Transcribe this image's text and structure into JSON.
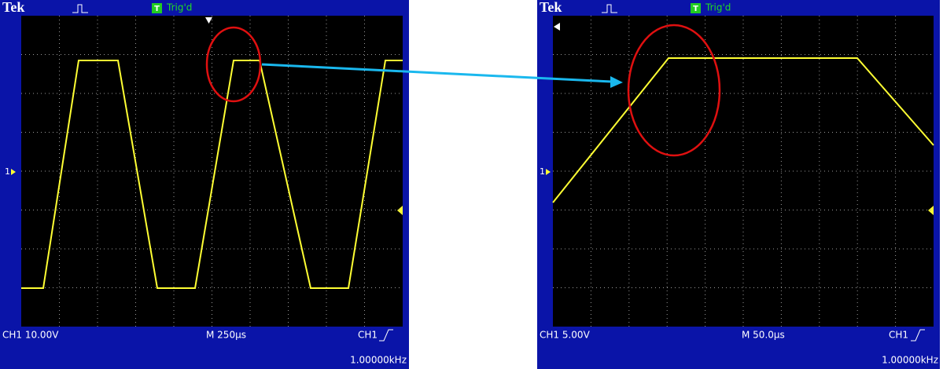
{
  "scopes": [
    {
      "header": {
        "brand": "Tek",
        "trigger_icon": "T",
        "status": "Trig'd"
      },
      "ground_marker": "1",
      "footer": {
        "channel": "CH1 10.00V",
        "timebase": "M 250µs",
        "trigger_source": "CH1",
        "frequency": "1.00000kHz"
      }
    },
    {
      "header": {
        "brand": "Tek",
        "trigger_icon": "T",
        "status": "Trig'd"
      },
      "ground_marker": "1",
      "footer": {
        "channel": "CH1  5.00V",
        "timebase": "M 50.0µs",
        "trigger_source": "CH1",
        "frequency": "1.00000kHz"
      }
    }
  ]
}
